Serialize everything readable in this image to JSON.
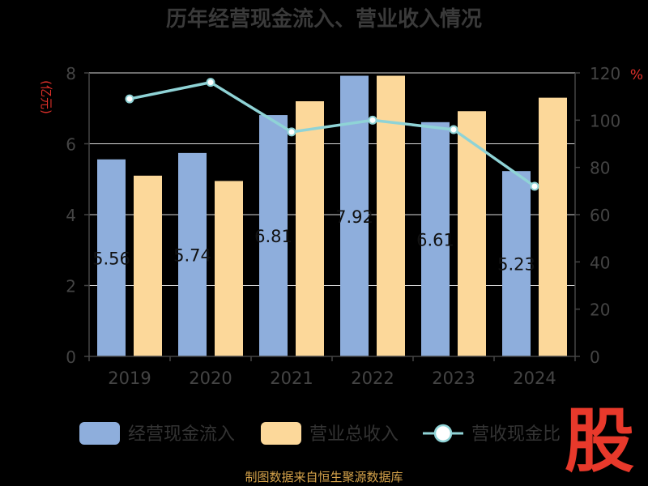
{
  "chart_data": {
    "type": "bar",
    "title": "历年经营现金流入、营业收入情况",
    "categories": [
      "2019",
      "2020",
      "2021",
      "2022",
      "2023",
      "2024"
    ],
    "y_left": {
      "unit_label": "(亿元)",
      "range": [
        0,
        8
      ],
      "ticks": [
        "0",
        "2",
        "4",
        "6",
        "8"
      ]
    },
    "y_right": {
      "unit_label": "%",
      "range": [
        0,
        120
      ],
      "ticks": [
        "0",
        "20",
        "40",
        "60",
        "80",
        "100",
        "120"
      ]
    },
    "series": [
      {
        "name": "经营现金流入",
        "type": "bar",
        "axis": "left",
        "color": "#8eaedc",
        "values": [
          5.56,
          5.74,
          6.81,
          7.92,
          6.61,
          5.23
        ],
        "labels": [
          "5.56",
          "5.74",
          "6.81",
          "7.92",
          "6.61",
          "5.23"
        ]
      },
      {
        "name": "营业总收入",
        "type": "bar",
        "axis": "left",
        "color": "#fcd89a",
        "values": [
          5.1,
          4.95,
          7.2,
          7.92,
          6.92,
          7.3
        ]
      },
      {
        "name": "营收现金比",
        "type": "line",
        "axis": "right",
        "color": "#8fd3d6",
        "values": [
          109,
          116,
          95,
          100,
          96,
          72
        ]
      }
    ],
    "grid": true,
    "legend_position": "bottom"
  },
  "footer": {
    "source": "制图数据来自恒生聚源数据库"
  },
  "logo": {
    "text": "股"
  }
}
